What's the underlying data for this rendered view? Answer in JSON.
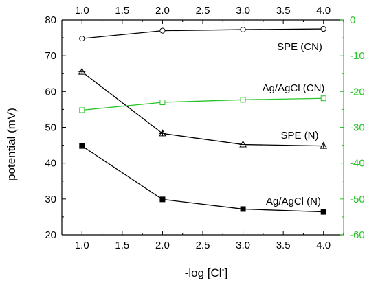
{
  "chart_data": {
    "type": "line",
    "xlabel": "-log [Cl",
    "xlabel_sup": "-",
    "xlabel_close": "]",
    "ylabel": "potential (mV)",
    "x_ticks": [
      "1.0",
      "1.5",
      "2.0",
      "2.5",
      "3.0",
      "3.5",
      "4.0"
    ],
    "top_x_ticks": [
      "1.0",
      "1.5",
      "2.0",
      "2.5",
      "3.0",
      "3.5",
      "4.0"
    ],
    "y_ticks": [
      "20",
      "30",
      "40",
      "50",
      "60",
      "70",
      "80"
    ],
    "right_y_ticks": [
      "0",
      "-10",
      "-20",
      "-30",
      "-40",
      "-50",
      "-60"
    ],
    "xlim": [
      0.75,
      4.25
    ],
    "ylim": [
      20,
      80
    ],
    "right_ylim": [
      -60,
      0
    ],
    "right_axis_color": "#27c427",
    "grid": false,
    "series": [
      {
        "name": "SPE (CN)",
        "axis": "left",
        "color": "#000000",
        "marker": "circle-open",
        "x": [
          1.0,
          2.0,
          3.0,
          4.0
        ],
        "y": [
          74.8,
          77.0,
          77.3,
          77.5
        ]
      },
      {
        "name": "SPE (N)",
        "axis": "left",
        "color": "#000000",
        "marker": "triangle-plus",
        "x": [
          1.0,
          2.0,
          3.0,
          4.0
        ],
        "y": [
          65.5,
          48.3,
          45.2,
          44.8
        ]
      },
      {
        "name": "Ag/AgCl (N)",
        "axis": "left",
        "color": "#000000",
        "marker": "square-filled",
        "x": [
          1.0,
          2.0,
          3.0,
          4.0
        ],
        "y": [
          44.8,
          29.9,
          27.2,
          26.4
        ]
      },
      {
        "name": "Ag/AgCl (CN)",
        "axis": "right",
        "color": "#27c427",
        "marker": "square-open",
        "x": [
          1.0,
          2.0,
          3.0,
          4.0
        ],
        "y": [
          -25.2,
          -23.0,
          -22.3,
          -21.9
        ]
      }
    ],
    "annotations": [
      "SPE (CN)",
      "Ag/AgCl (CN)",
      "SPE (N)",
      "Ag/AgCl (N)"
    ]
  }
}
